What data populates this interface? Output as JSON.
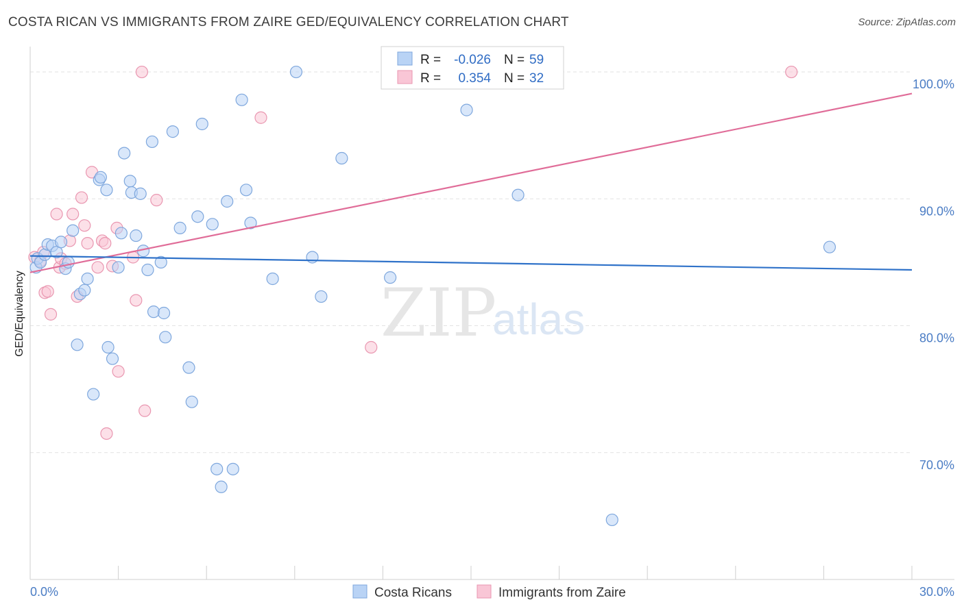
{
  "title": "COSTA RICAN VS IMMIGRANTS FROM ZAIRE GED/EQUIVALENCY CORRELATION CHART",
  "source": "Source: ZipAtlas.com",
  "watermark": {
    "zip": "ZIP",
    "atlas": "atlas"
  },
  "colors": {
    "blue_fill": "#b9d3f5",
    "blue_stroke": "#7ea7dd",
    "blue_line": "#2f72c9",
    "pink_fill": "#f9c6d6",
    "pink_stroke": "#e996b0",
    "pink_line": "#e06c98",
    "grid": "#e2e2e2",
    "axis_label": "#4a7cc4"
  },
  "legend": {
    "rows": [
      {
        "r_label": "R =",
        "r_value": "-0.026",
        "n_label": "N =",
        "n_value": "59"
      },
      {
        "r_label": "R =",
        "r_value": "0.354",
        "n_label": "N =",
        "n_value": "32"
      }
    ]
  },
  "chart_data": {
    "type": "scatter",
    "title": "COSTA RICAN VS IMMIGRANTS FROM ZAIRE GED/EQUIVALENCY CORRELATION CHART",
    "xlabel": "",
    "ylabel": "GED/Equivalency",
    "xlim": [
      0,
      30
    ],
    "ylim": [
      60,
      102
    ],
    "x_tick_labels": [
      "0.0%",
      "30.0%"
    ],
    "y_ticks": [
      70,
      80,
      90,
      100
    ],
    "y_tick_labels": [
      "70.0%",
      "80.0%",
      "90.0%",
      "100.0%"
    ],
    "grid": true,
    "series": [
      {
        "name": "Costa Ricans",
        "r": -0.026,
        "n": 59,
        "trend": {
          "x": [
            0,
            30
          ],
          "y": [
            85.5,
            84.4
          ]
        },
        "points": [
          [
            0.2,
            84.6
          ],
          [
            0.25,
            85.3
          ],
          [
            0.35,
            85.0
          ],
          [
            0.5,
            85.6
          ],
          [
            0.6,
            86.4
          ],
          [
            0.75,
            86.3
          ],
          [
            0.9,
            85.8
          ],
          [
            1.05,
            86.6
          ],
          [
            1.2,
            84.5
          ],
          [
            1.3,
            85.0
          ],
          [
            1.45,
            87.5
          ],
          [
            1.6,
            78.5
          ],
          [
            1.7,
            82.5
          ],
          [
            1.85,
            82.8
          ],
          [
            1.95,
            83.7
          ],
          [
            2.15,
            74.6
          ],
          [
            2.35,
            91.5
          ],
          [
            2.4,
            91.7
          ],
          [
            2.6,
            90.7
          ],
          [
            2.65,
            78.3
          ],
          [
            2.8,
            77.4
          ],
          [
            3.0,
            84.6
          ],
          [
            3.1,
            87.3
          ],
          [
            3.2,
            93.6
          ],
          [
            3.4,
            91.4
          ],
          [
            3.45,
            90.5
          ],
          [
            3.6,
            87.1
          ],
          [
            3.75,
            90.4
          ],
          [
            3.85,
            85.9
          ],
          [
            4.0,
            84.4
          ],
          [
            4.15,
            94.5
          ],
          [
            4.2,
            81.1
          ],
          [
            4.45,
            85.0
          ],
          [
            4.55,
            81.0
          ],
          [
            4.6,
            79.1
          ],
          [
            4.85,
            95.3
          ],
          [
            5.1,
            87.7
          ],
          [
            5.4,
            76.7
          ],
          [
            5.5,
            74.0
          ],
          [
            5.7,
            88.6
          ],
          [
            5.85,
            95.9
          ],
          [
            6.2,
            88.0
          ],
          [
            6.35,
            68.7
          ],
          [
            6.5,
            67.3
          ],
          [
            6.7,
            89.8
          ],
          [
            6.9,
            68.7
          ],
          [
            7.2,
            97.8
          ],
          [
            7.35,
            90.7
          ],
          [
            7.5,
            88.1
          ],
          [
            8.25,
            83.7
          ],
          [
            9.05,
            100.0
          ],
          [
            9.6,
            85.4
          ],
          [
            9.9,
            82.3
          ],
          [
            10.6,
            93.2
          ],
          [
            12.25,
            83.8
          ],
          [
            14.85,
            97.0
          ],
          [
            16.6,
            90.3
          ],
          [
            19.8,
            64.7
          ],
          [
            27.2,
            86.2
          ]
        ]
      },
      {
        "name": "Immigrants from Zaire",
        "r": 0.354,
        "n": 32,
        "trend": {
          "x": [
            0,
            30
          ],
          "y": [
            84.2,
            98.3
          ]
        },
        "points": [
          [
            0.15,
            85.4
          ],
          [
            0.35,
            85.1
          ],
          [
            0.45,
            85.8
          ],
          [
            0.5,
            82.6
          ],
          [
            0.6,
            82.7
          ],
          [
            0.7,
            80.9
          ],
          [
            0.9,
            88.8
          ],
          [
            1.0,
            84.6
          ],
          [
            1.05,
            85.3
          ],
          [
            1.2,
            84.9
          ],
          [
            1.35,
            86.7
          ],
          [
            1.45,
            88.8
          ],
          [
            1.6,
            82.3
          ],
          [
            1.75,
            90.1
          ],
          [
            1.85,
            87.9
          ],
          [
            1.95,
            86.5
          ],
          [
            2.1,
            92.1
          ],
          [
            2.3,
            84.6
          ],
          [
            2.45,
            86.7
          ],
          [
            2.55,
            86.5
          ],
          [
            2.6,
            71.5
          ],
          [
            2.8,
            84.7
          ],
          [
            2.95,
            87.7
          ],
          [
            3.0,
            76.4
          ],
          [
            3.5,
            85.4
          ],
          [
            3.6,
            82.0
          ],
          [
            3.8,
            100.0
          ],
          [
            3.9,
            73.3
          ],
          [
            4.3,
            89.9
          ],
          [
            7.85,
            96.4
          ],
          [
            11.6,
            78.3
          ],
          [
            25.9,
            100.0
          ]
        ]
      }
    ]
  }
}
